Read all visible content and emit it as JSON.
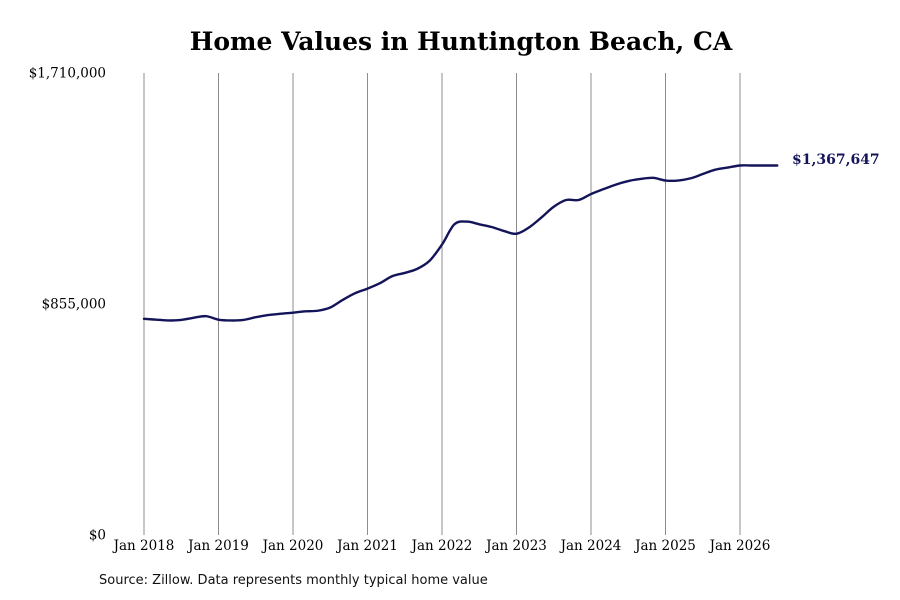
{
  "source_note": "Source: Zillow. Data represents monthly typical home value",
  "chart_data": {
    "type": "line",
    "title": "Home Values in Huntington Beach, CA",
    "xlabel": "",
    "ylabel": "",
    "ylim": [
      0,
      1710000
    ],
    "yticks": [
      {
        "value": 0,
        "label": "$0"
      },
      {
        "value": 855000,
        "label": "$855,000"
      },
      {
        "value": 1710000,
        "label": "$1,710,000"
      }
    ],
    "xlim": [
      "2018-01",
      "2026-07"
    ],
    "xticks": [
      {
        "x": "2018-01",
        "label": "Jan 2018"
      },
      {
        "x": "2019-01",
        "label": "Jan 2019"
      },
      {
        "x": "2020-01",
        "label": "Jan 2020"
      },
      {
        "x": "2021-01",
        "label": "Jan 2021"
      },
      {
        "x": "2022-01",
        "label": "Jan 2022"
      },
      {
        "x": "2023-01",
        "label": "Jan 2023"
      },
      {
        "x": "2024-01",
        "label": "Jan 2024"
      },
      {
        "x": "2025-01",
        "label": "Jan 2025"
      },
      {
        "x": "2026-01",
        "label": "Jan 2026"
      }
    ],
    "vertical_gridlines": true,
    "horizontal_gridlines": false,
    "line_color": "#14145a",
    "gridline_color": "#8c8c8c",
    "end_label": "$1,367,647",
    "series": [
      {
        "name": "",
        "x": [
          "2018-01",
          "2018-03",
          "2018-05",
          "2018-07",
          "2018-09",
          "2018-11",
          "2019-01",
          "2019-03",
          "2019-05",
          "2019-07",
          "2019-09",
          "2019-11",
          "2020-01",
          "2020-03",
          "2020-05",
          "2020-07",
          "2020-09",
          "2020-11",
          "2021-01",
          "2021-03",
          "2021-05",
          "2021-07",
          "2021-09",
          "2021-11",
          "2022-01",
          "2022-03",
          "2022-05",
          "2022-07",
          "2022-09",
          "2022-11",
          "2023-01",
          "2023-03",
          "2023-05",
          "2023-07",
          "2023-09",
          "2023-11",
          "2024-01",
          "2024-03",
          "2024-05",
          "2024-07",
          "2024-09",
          "2024-11",
          "2025-01",
          "2025-03",
          "2025-05",
          "2025-07",
          "2025-09",
          "2025-11",
          "2026-01",
          "2026-03",
          "2026-05",
          "2026-07"
        ],
        "y": [
          800000,
          797000,
          794000,
          796000,
          804000,
          810000,
          797000,
          794000,
          796000,
          806000,
          814000,
          819000,
          823000,
          828000,
          830000,
          842000,
          870000,
          895000,
          912000,
          932000,
          958000,
          970000,
          985000,
          1015000,
          1075000,
          1150000,
          1160000,
          1150000,
          1140000,
          1125000,
          1115000,
          1138000,
          1175000,
          1215000,
          1240000,
          1240000,
          1262000,
          1280000,
          1297000,
          1310000,
          1318000,
          1322000,
          1312000,
          1312000,
          1320000,
          1336000,
          1352000,
          1360000,
          1367647,
          1367647,
          1367647,
          1367647
        ]
      }
    ]
  }
}
